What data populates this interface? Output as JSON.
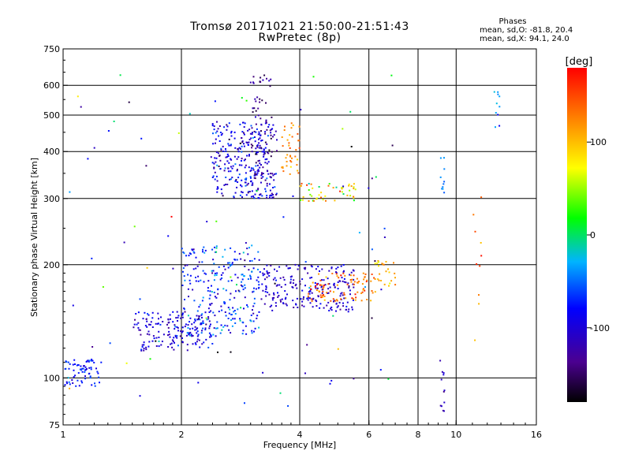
{
  "header": {
    "title": "Tromsø 20171021 21:50:00-21:51:43",
    "subtitle": "RwPretec (8p)"
  },
  "phase_stats": {
    "title": "Phases",
    "line_o": "mean, sd,O: -81.8, 20.4",
    "line_x": "mean, sd,X:  94.1, 24.0"
  },
  "colorbar": {
    "label": "[deg]",
    "tick_labels": [
      "100",
      "0",
      "-100"
    ],
    "tick_values": [
      100,
      0,
      -100
    ],
    "range": [
      -180,
      180
    ]
  },
  "chart_data": {
    "type": "scatter",
    "xlabel": "Frequency [MHz]",
    "ylabel": "Stationary phase Virtual Height [km]",
    "x_scale": "log",
    "y_scale": "log",
    "xlim": [
      1,
      16
    ],
    "ylim": [
      75,
      750
    ],
    "grid": true,
    "x_ticks": [
      1,
      2,
      4,
      6,
      8,
      10,
      16
    ],
    "x_tick_labels": [
      "1",
      "2",
      "4",
      "6",
      "8",
      "10",
      "16"
    ],
    "x_gridlines": [
      2,
      4,
      6,
      8,
      10
    ],
    "y_ticks": [
      75,
      100,
      200,
      300,
      400,
      500,
      600,
      750
    ],
    "y_tick_labels": [
      "75",
      "100",
      "200",
      "300",
      "400",
      "500",
      "600",
      "750"
    ],
    "y_gridlines": [
      100,
      200,
      300,
      400,
      500,
      600
    ],
    "clusters": [
      {
        "name": "",
        "x_range": [
          1.0,
          1.25
        ],
        "h_range": [
          95,
          112
        ],
        "phase_mean": -75,
        "phase_sd": 15,
        "count": 70
      },
      {
        "name": "",
        "x_range": [
          1.5,
          2.4
        ],
        "h_range": [
          118,
          150
        ],
        "phase_mean": -100,
        "phase_sd": 20,
        "count": 170
      },
      {
        "name": "",
        "x_range": [
          2.0,
          3.2
        ],
        "h_range": [
          128,
          225
        ],
        "phase_mean": -70,
        "phase_sd": 30,
        "count": 260
      },
      {
        "name": "",
        "x_range": [
          3.2,
          5.5
        ],
        "h_range": [
          150,
          200
        ],
        "phase_mean": -105,
        "phase_sd": 15,
        "count": 220
      },
      {
        "name": "",
        "x_range": [
          4.2,
          6.3
        ],
        "h_range": [
          160,
          190
        ],
        "phase_mean": 135,
        "phase_sd": 25,
        "count": 90
      },
      {
        "name": "",
        "x_range": [
          6.2,
          7.0
        ],
        "h_range": [
          175,
          205
        ],
        "phase_mean": 105,
        "phase_sd": 20,
        "count": 25
      },
      {
        "name": "",
        "x_range": [
          2.4,
          3.5
        ],
        "h_range": [
          300,
          480
        ],
        "phase_mean": -95,
        "phase_sd": 25,
        "count": 300
      },
      {
        "name": "",
        "x_range": [
          3.0,
          3.4
        ],
        "h_range": [
          330,
          640
        ],
        "phase_mean": -135,
        "phase_sd": 20,
        "count": 80
      },
      {
        "name": "",
        "x_range": [
          3.6,
          4.0
        ],
        "h_range": [
          330,
          480
        ],
        "phase_mean": 115,
        "phase_sd": 25,
        "count": 40
      },
      {
        "name": "",
        "x_range": [
          4.0,
          5.6
        ],
        "h_range": [
          295,
          330
        ],
        "phase_mean": 70,
        "phase_sd": 40,
        "count": 50
      },
      {
        "name": "",
        "x_range": [
          9.1,
          9.35
        ],
        "h_range": [
          78,
          115
        ],
        "phase_mean": -110,
        "phase_sd": 10,
        "count": 12
      },
      {
        "name": "",
        "x_range": [
          9.1,
          9.35
        ],
        "h_range": [
          310,
          390
        ],
        "phase_mean": -40,
        "phase_sd": 15,
        "count": 10
      },
      {
        "name": "",
        "x_range": [
          12.5,
          12.9
        ],
        "h_range": [
          450,
          590
        ],
        "phase_mean": -40,
        "phase_sd": 20,
        "count": 10
      },
      {
        "name": "",
        "x_range": [
          11.0,
          11.6
        ],
        "h_range": [
          75,
          390
        ],
        "phase_mean": 140,
        "phase_sd": 20,
        "count": 10
      },
      {
        "name": "",
        "x_range": [
          1.0,
          7.0
        ],
        "h_range": [
          80,
          660
        ],
        "phase_mean": -60,
        "phase_sd": 80,
        "count": 90
      }
    ]
  }
}
